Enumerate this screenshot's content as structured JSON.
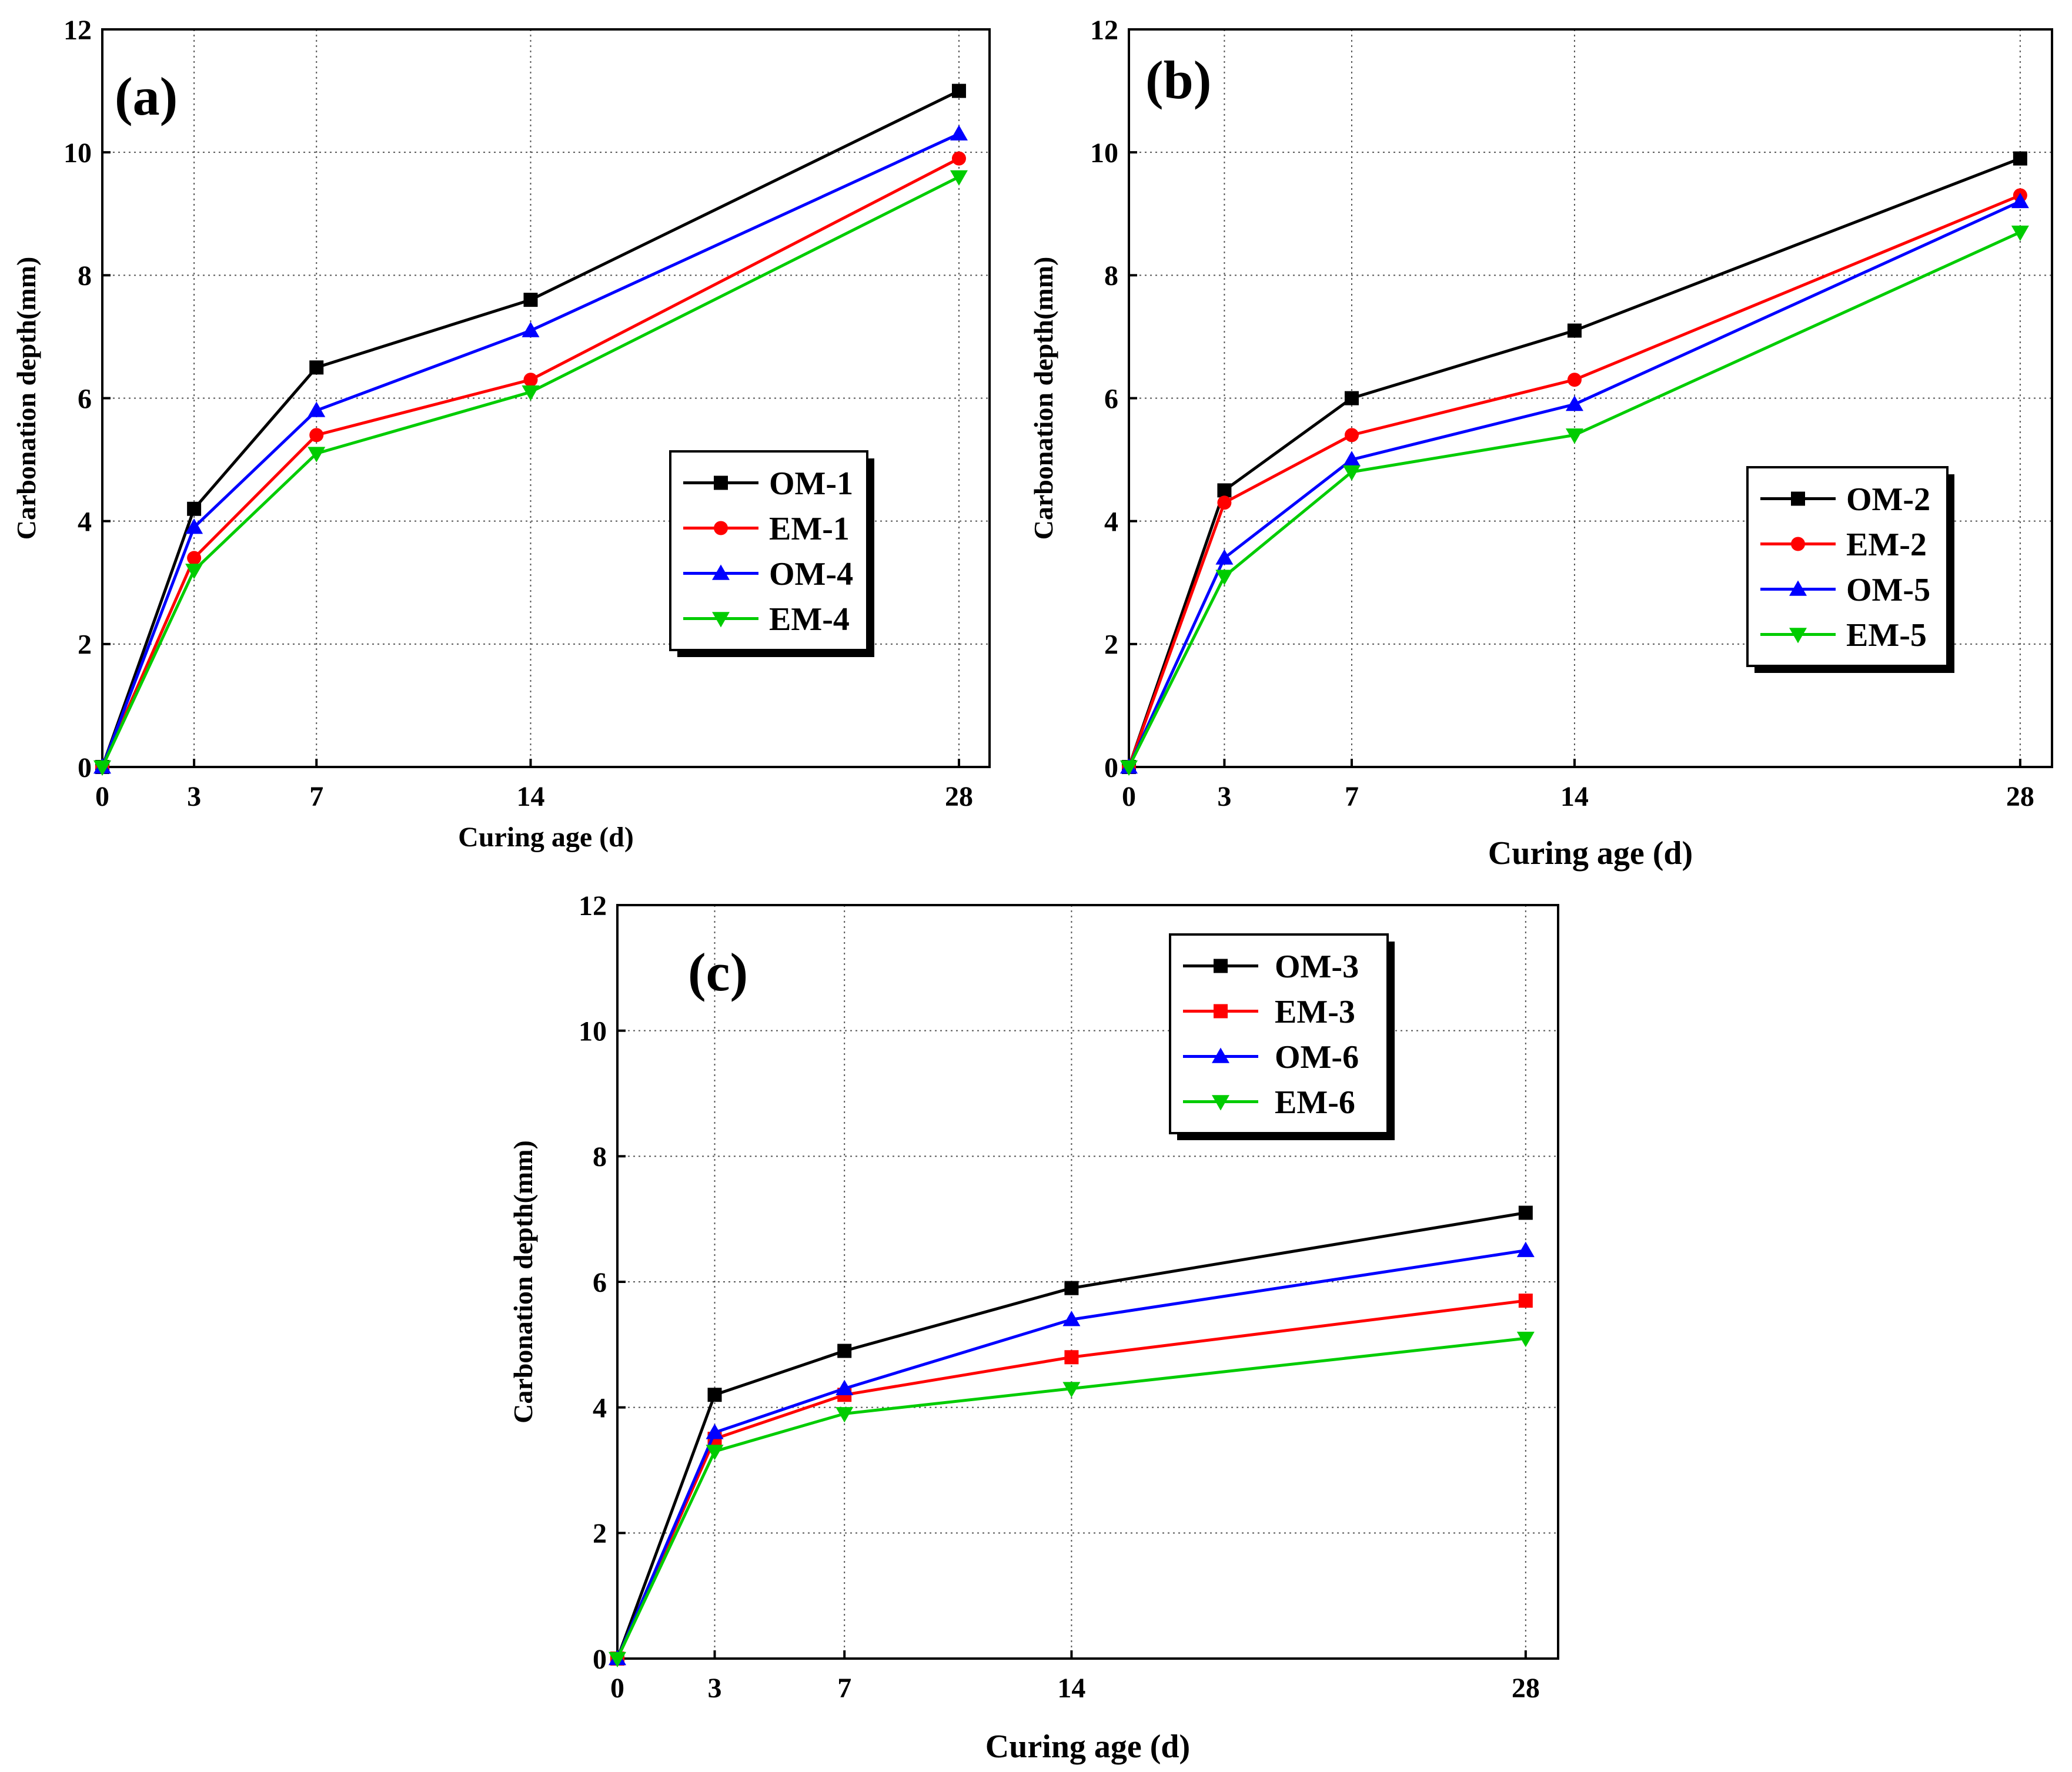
{
  "chart_data": [
    {
      "type": "line",
      "panel_label": "(a)",
      "xlabel": "Curing age (d)",
      "ylabel": "Carbonation depth(mm)",
      "x": [
        0,
        3,
        7,
        14,
        28
      ],
      "x_ticks": [
        0,
        3,
        7,
        14,
        28
      ],
      "xlim": [
        0,
        29
      ],
      "ylim": [
        0,
        12
      ],
      "y_ticks": [
        0,
        2,
        4,
        6,
        8,
        10,
        12
      ],
      "grid": true,
      "legend_position": "right-middle",
      "series": [
        {
          "name": "OM-1",
          "color": "#000000",
          "marker": "square",
          "values": [
            0,
            4.2,
            6.5,
            7.6,
            11.0
          ]
        },
        {
          "name": "EM-1",
          "color": "#ff0000",
          "marker": "circle",
          "values": [
            0,
            3.4,
            5.4,
            6.3,
            9.9
          ]
        },
        {
          "name": "OM-4",
          "color": "#0000ff",
          "marker": "triangle-up",
          "values": [
            0,
            3.9,
            5.8,
            7.1,
            10.3
          ]
        },
        {
          "name": "EM-4",
          "color": "#00cc00",
          "marker": "triangle-down",
          "values": [
            0,
            3.2,
            5.1,
            6.1,
            9.6
          ]
        }
      ]
    },
    {
      "type": "line",
      "panel_label": "(b)",
      "xlabel": "Curing age (d)",
      "ylabel": "Carbonation depth(mm)",
      "x": [
        0,
        3,
        7,
        14,
        28
      ],
      "x_ticks": [
        0,
        3,
        7,
        14,
        28
      ],
      "xlim": [
        0,
        29
      ],
      "ylim": [
        0,
        12
      ],
      "y_ticks": [
        0,
        2,
        4,
        6,
        8,
        10,
        12
      ],
      "grid": true,
      "legend_position": "right-middle",
      "series": [
        {
          "name": "OM-2",
          "color": "#000000",
          "marker": "square",
          "values": [
            0,
            4.5,
            6.0,
            7.1,
            9.9
          ]
        },
        {
          "name": "EM-2",
          "color": "#ff0000",
          "marker": "circle",
          "values": [
            0,
            4.3,
            5.4,
            6.3,
            9.3
          ]
        },
        {
          "name": "OM-5",
          "color": "#0000ff",
          "marker": "triangle-up",
          "values": [
            0,
            3.4,
            5.0,
            5.9,
            9.2
          ]
        },
        {
          "name": "EM-5",
          "color": "#00cc00",
          "marker": "triangle-down",
          "values": [
            0,
            3.1,
            4.8,
            5.4,
            8.7
          ]
        }
      ]
    },
    {
      "type": "line",
      "panel_label": "(c)",
      "xlabel": "Curing age (d)",
      "ylabel": "Carbonation depth(mm)",
      "x": [
        0,
        3,
        7,
        14,
        28
      ],
      "x_ticks": [
        0,
        3,
        7,
        14,
        28
      ],
      "xlim": [
        0,
        29
      ],
      "ylim": [
        0,
        12
      ],
      "y_ticks": [
        0,
        2,
        4,
        6,
        8,
        10,
        12
      ],
      "grid": true,
      "legend_position": "top-right",
      "series": [
        {
          "name": "OM-3",
          "color": "#000000",
          "marker": "square",
          "values": [
            0,
            4.2,
            4.9,
            5.9,
            7.1
          ]
        },
        {
          "name": "EM-3",
          "color": "#ff0000",
          "marker": "square",
          "values": [
            0,
            3.5,
            4.2,
            4.8,
            5.7
          ]
        },
        {
          "name": "OM-6",
          "color": "#0000ff",
          "marker": "triangle-up",
          "values": [
            0,
            3.6,
            4.3,
            5.4,
            6.5
          ]
        },
        {
          "name": "EM-6",
          "color": "#00cc00",
          "marker": "triangle-down",
          "values": [
            0,
            3.3,
            3.9,
            4.3,
            5.1
          ]
        }
      ]
    }
  ]
}
